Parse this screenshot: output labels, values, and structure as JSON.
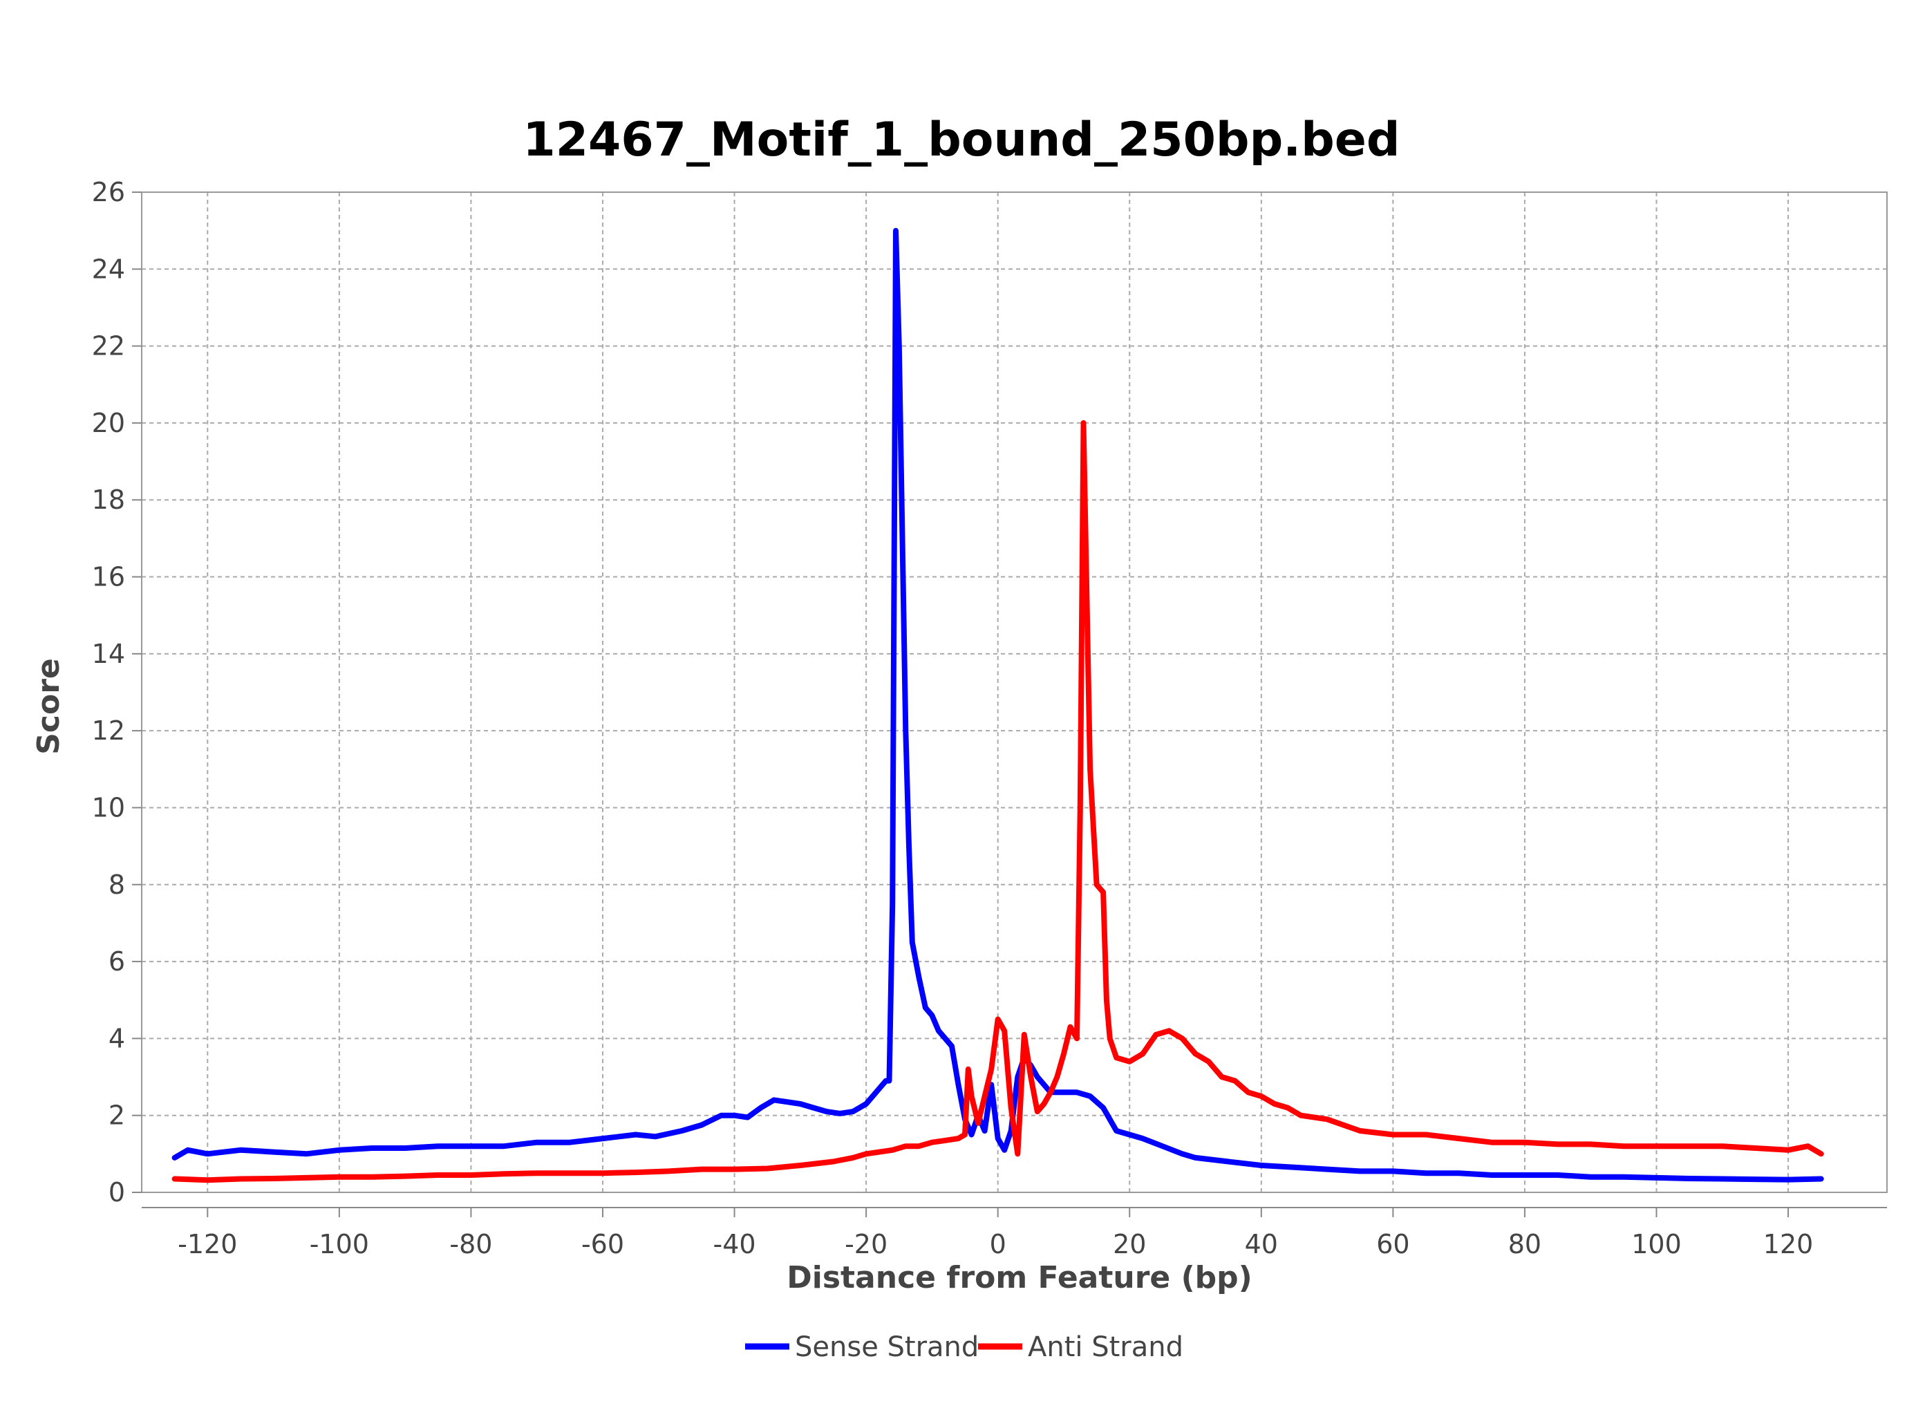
{
  "chart_data": {
    "type": "line",
    "title": "12467_Motif_1_bound_250bp.bed",
    "xlabel": "Distance from Feature (bp)",
    "ylabel": "Score",
    "xlim": [
      -130,
      135
    ],
    "ylim": [
      0,
      26
    ],
    "grid": true,
    "legend_placement": "bottom-center",
    "x_ticks": [
      "-120",
      "-100",
      "-80",
      "-60",
      "-40",
      "-20",
      "0",
      "20",
      "40",
      "60",
      "80",
      "100",
      "120"
    ],
    "y_ticks": [
      "0",
      "2",
      "4",
      "6",
      "8",
      "10",
      "12",
      "14",
      "16",
      "18",
      "20",
      "22",
      "24",
      "26"
    ],
    "series": [
      {
        "name": "Sense Strand",
        "color": "#0000ff",
        "points": [
          [
            -125,
            0.9
          ],
          [
            -123,
            1.1
          ],
          [
            -120,
            1.0
          ],
          [
            -115,
            1.1
          ],
          [
            -110,
            1.05
          ],
          [
            -105,
            1.0
          ],
          [
            -100,
            1.1
          ],
          [
            -95,
            1.15
          ],
          [
            -90,
            1.15
          ],
          [
            -85,
            1.2
          ],
          [
            -80,
            1.2
          ],
          [
            -75,
            1.2
          ],
          [
            -70,
            1.3
          ],
          [
            -65,
            1.3
          ],
          [
            -60,
            1.4
          ],
          [
            -55,
            1.5
          ],
          [
            -52,
            1.45
          ],
          [
            -48,
            1.6
          ],
          [
            -45,
            1.75
          ],
          [
            -42,
            2.0
          ],
          [
            -40,
            2.0
          ],
          [
            -38,
            1.95
          ],
          [
            -36,
            2.2
          ],
          [
            -34,
            2.4
          ],
          [
            -32,
            2.35
          ],
          [
            -30,
            2.3
          ],
          [
            -28,
            2.2
          ],
          [
            -26,
            2.1
          ],
          [
            -24,
            2.05
          ],
          [
            -22,
            2.1
          ],
          [
            -20,
            2.3
          ],
          [
            -18,
            2.7
          ],
          [
            -17,
            2.9
          ],
          [
            -16.5,
            2.9
          ],
          [
            -16,
            7.5
          ],
          [
            -15.5,
            25.0
          ],
          [
            -15,
            22.0
          ],
          [
            -14.5,
            17.0
          ],
          [
            -14,
            12.0
          ],
          [
            -13.5,
            9.0
          ],
          [
            -13,
            6.5
          ],
          [
            -12,
            5.6
          ],
          [
            -11,
            4.8
          ],
          [
            -10,
            4.6
          ],
          [
            -9,
            4.2
          ],
          [
            -8,
            4.0
          ],
          [
            -7,
            3.8
          ],
          [
            -6,
            2.8
          ],
          [
            -5,
            1.9
          ],
          [
            -4,
            1.5
          ],
          [
            -3,
            2.0
          ],
          [
            -2,
            1.6
          ],
          [
            -1,
            2.8
          ],
          [
            0,
            1.4
          ],
          [
            1,
            1.1
          ],
          [
            2,
            1.6
          ],
          [
            3,
            3.0
          ],
          [
            4,
            3.5
          ],
          [
            5,
            3.3
          ],
          [
            6,
            3.0
          ],
          [
            7,
            2.8
          ],
          [
            8,
            2.6
          ],
          [
            10,
            2.6
          ],
          [
            12,
            2.6
          ],
          [
            14,
            2.5
          ],
          [
            16,
            2.2
          ],
          [
            18,
            1.6
          ],
          [
            20,
            1.5
          ],
          [
            22,
            1.4
          ],
          [
            25,
            1.2
          ],
          [
            28,
            1.0
          ],
          [
            30,
            0.9
          ],
          [
            35,
            0.8
          ],
          [
            40,
            0.7
          ],
          [
            45,
            0.65
          ],
          [
            50,
            0.6
          ],
          [
            55,
            0.55
          ],
          [
            60,
            0.55
          ],
          [
            65,
            0.5
          ],
          [
            70,
            0.5
          ],
          [
            75,
            0.45
          ],
          [
            80,
            0.45
          ],
          [
            85,
            0.45
          ],
          [
            90,
            0.4
          ],
          [
            95,
            0.4
          ],
          [
            100,
            0.38
          ],
          [
            105,
            0.36
          ],
          [
            110,
            0.35
          ],
          [
            115,
            0.34
          ],
          [
            120,
            0.33
          ],
          [
            125,
            0.35
          ]
        ]
      },
      {
        "name": "Anti Strand",
        "color": "#ff0000",
        "points": [
          [
            -125,
            0.35
          ],
          [
            -120,
            0.32
          ],
          [
            -115,
            0.35
          ],
          [
            -110,
            0.36
          ],
          [
            -105,
            0.38
          ],
          [
            -100,
            0.4
          ],
          [
            -95,
            0.4
          ],
          [
            -90,
            0.42
          ],
          [
            -85,
            0.45
          ],
          [
            -80,
            0.45
          ],
          [
            -75,
            0.48
          ],
          [
            -70,
            0.5
          ],
          [
            -65,
            0.5
          ],
          [
            -60,
            0.5
          ],
          [
            -55,
            0.52
          ],
          [
            -50,
            0.55
          ],
          [
            -45,
            0.6
          ],
          [
            -40,
            0.6
          ],
          [
            -35,
            0.62
          ],
          [
            -30,
            0.7
          ],
          [
            -25,
            0.8
          ],
          [
            -22,
            0.9
          ],
          [
            -20,
            1.0
          ],
          [
            -18,
            1.05
          ],
          [
            -16,
            1.1
          ],
          [
            -14,
            1.2
          ],
          [
            -12,
            1.2
          ],
          [
            -10,
            1.3
          ],
          [
            -8,
            1.35
          ],
          [
            -6,
            1.4
          ],
          [
            -5,
            1.5
          ],
          [
            -4.5,
            3.2
          ],
          [
            -4,
            2.5
          ],
          [
            -3,
            1.8
          ],
          [
            -2,
            2.5
          ],
          [
            -1,
            3.2
          ],
          [
            0,
            4.5
          ],
          [
            1,
            4.2
          ],
          [
            2,
            2.2
          ],
          [
            3,
            1.0
          ],
          [
            4,
            4.1
          ],
          [
            5,
            3.0
          ],
          [
            6,
            2.1
          ],
          [
            7,
            2.3
          ],
          [
            8,
            2.6
          ],
          [
            9,
            3.0
          ],
          [
            10,
            3.6
          ],
          [
            11,
            4.3
          ],
          [
            12,
            4.0
          ],
          [
            12.5,
            10.0
          ],
          [
            13,
            20.0
          ],
          [
            14,
            11.0
          ],
          [
            15,
            8.0
          ],
          [
            16,
            7.8
          ],
          [
            16.5,
            5.0
          ],
          [
            17,
            4.0
          ],
          [
            18,
            3.5
          ],
          [
            20,
            3.4
          ],
          [
            22,
            3.6
          ],
          [
            24,
            4.1
          ],
          [
            26,
            4.2
          ],
          [
            28,
            4.0
          ],
          [
            30,
            3.6
          ],
          [
            32,
            3.4
          ],
          [
            34,
            3.0
          ],
          [
            36,
            2.9
          ],
          [
            38,
            2.6
          ],
          [
            40,
            2.5
          ],
          [
            42,
            2.3
          ],
          [
            44,
            2.2
          ],
          [
            46,
            2.0
          ],
          [
            50,
            1.9
          ],
          [
            55,
            1.6
          ],
          [
            60,
            1.5
          ],
          [
            65,
            1.5
          ],
          [
            70,
            1.4
          ],
          [
            75,
            1.3
          ],
          [
            80,
            1.3
          ],
          [
            85,
            1.25
          ],
          [
            90,
            1.25
          ],
          [
            95,
            1.2
          ],
          [
            100,
            1.2
          ],
          [
            105,
            1.2
          ],
          [
            110,
            1.2
          ],
          [
            115,
            1.15
          ],
          [
            120,
            1.1
          ],
          [
            123,
            1.2
          ],
          [
            125,
            1.0
          ]
        ]
      }
    ]
  }
}
